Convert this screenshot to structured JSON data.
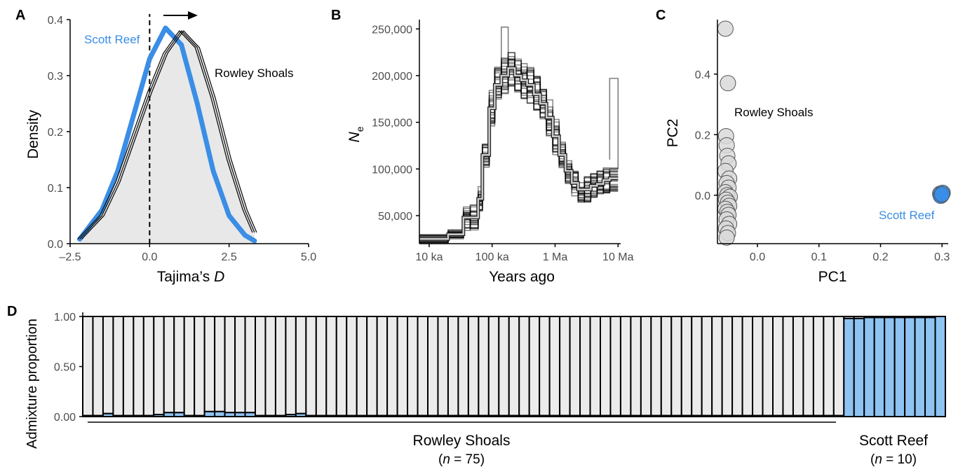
{
  "chart_data": [
    {
      "panel": "A",
      "type": "area",
      "xlabel_main": "Tajima’s ",
      "xlabel_italic": "D",
      "ylabel": "Density",
      "xlim": [
        -2.5,
        5.0
      ],
      "ylim": [
        0,
        0.4
      ],
      "xticks": [
        -2.5,
        0.0,
        2.5,
        5.0
      ],
      "xtick_labels": [
        "–2.5",
        "0.0",
        "2.5",
        "5.0"
      ],
      "yticks": [
        0.0,
        0.1,
        0.2,
        0.3,
        0.4
      ],
      "ytick_labels": [
        "0.0",
        "0.1",
        "0.2",
        "0.3",
        "0.4"
      ],
      "reference_line_x": 0,
      "series": [
        {
          "name": "Scott Reef",
          "x": [
            -2.2,
            -1.5,
            -1.0,
            -0.5,
            0.0,
            0.5,
            1.0,
            1.5,
            2.0,
            2.5,
            3.0,
            3.3
          ],
          "y": [
            0.008,
            0.06,
            0.13,
            0.23,
            0.33,
            0.385,
            0.355,
            0.25,
            0.13,
            0.05,
            0.015,
            0.005
          ]
        },
        {
          "name": "Rowley Shoals",
          "x": [
            -2.2,
            -1.5,
            -1.0,
            -0.5,
            0.0,
            0.5,
            1.0,
            1.5,
            2.0,
            2.5,
            3.0,
            3.3
          ],
          "y": [
            0.008,
            0.05,
            0.11,
            0.19,
            0.27,
            0.34,
            0.38,
            0.35,
            0.26,
            0.15,
            0.06,
            0.02
          ]
        }
      ],
      "series_colors": {
        "Scott Reef": "#3a8ee6",
        "Rowley Shoals": "#111111"
      },
      "fill_color": "#e8e8e8"
    },
    {
      "panel": "B",
      "type": "line",
      "xlabel": "Years ago",
      "ylabel_main": "N",
      "ylabel_sub": "e",
      "x_scale": "log",
      "xlim": [
        7000,
        11000000
      ],
      "ylim": [
        20000,
        260000
      ],
      "xticks": [
        10000,
        100000,
        1000000,
        10000000
      ],
      "xtick_labels": [
        "10 ka",
        "100 ka",
        "1 Ma",
        "10 Ma"
      ],
      "yticks": [
        50000,
        100000,
        150000,
        200000,
        250000
      ],
      "ytick_labels": [
        "50,000",
        "100,000",
        "150,000",
        "200,000",
        "250,000"
      ],
      "median": {
        "x": [
          7000,
          20000,
          20000,
          35000,
          35000,
          45000,
          45000,
          60000,
          60000,
          70000,
          70000,
          90000,
          90000,
          110000,
          110000,
          140000,
          140000,
          180000,
          180000,
          230000,
          230000,
          290000,
          290000,
          360000,
          360000,
          460000,
          460000,
          580000,
          580000,
          730000,
          730000,
          920000,
          920000,
          1160000,
          1160000,
          1460000,
          1460000,
          1840000,
          1840000,
          2320000,
          2320000,
          2920000,
          2920000,
          3680000,
          3680000,
          4640000,
          4640000,
          5840000,
          5840000,
          7360000,
          7360000,
          10000000
        ],
        "y": [
          25000,
          25000,
          30000,
          30000,
          48000,
          48000,
          48000,
          48000,
          68000,
          68000,
          115000,
          115000,
          165000,
          165000,
          190000,
          190000,
          200000,
          200000,
          208000,
          208000,
          200000,
          200000,
          195000,
          195000,
          190000,
          190000,
          180000,
          180000,
          170000,
          170000,
          155000,
          155000,
          135000,
          135000,
          115000,
          115000,
          98000,
          98000,
          85000,
          85000,
          78000,
          78000,
          78000,
          78000,
          82000,
          82000,
          84000,
          84000,
          88000,
          88000,
          90000,
          90000
        ]
      },
      "replicate_spread": 14000,
      "replicate_count": 24,
      "median_color": "#c8c8c8",
      "replicate_color": "#000000"
    },
    {
      "panel": "C",
      "type": "scatter",
      "xlabel": "PC1",
      "ylabel": "PC2",
      "xlim": [
        -0.065,
        0.31
      ],
      "ylim": [
        -0.16,
        0.58
      ],
      "xticks": [
        0.0,
        0.1,
        0.2,
        0.3
      ],
      "xtick_labels": [
        "0.0",
        "0.1",
        "0.2",
        "0.3"
      ],
      "yticks": [
        0.0,
        0.2,
        0.4
      ],
      "ytick_labels": [
        "0.0",
        "0.2",
        "0.4"
      ],
      "series": [
        {
          "name": "Rowley Shoals",
          "color": "#d9d9d9",
          "points": [
            [
              -0.052,
              0.55
            ],
            [
              -0.048,
              0.37
            ],
            [
              -0.051,
              0.195
            ],
            [
              -0.05,
              0.165
            ],
            [
              -0.049,
              0.13
            ],
            [
              -0.047,
              0.105
            ],
            [
              -0.052,
              0.08
            ],
            [
              -0.046,
              0.055
            ],
            [
              -0.05,
              0.04
            ],
            [
              -0.047,
              0.025
            ],
            [
              -0.052,
              0.01
            ],
            [
              -0.049,
              0.0
            ],
            [
              -0.045,
              -0.005
            ],
            [
              -0.051,
              -0.015
            ],
            [
              -0.048,
              -0.025
            ],
            [
              -0.046,
              -0.035
            ],
            [
              -0.052,
              -0.045
            ],
            [
              -0.049,
              -0.055
            ],
            [
              -0.047,
              -0.065
            ],
            [
              -0.05,
              -0.08
            ],
            [
              -0.046,
              -0.095
            ],
            [
              -0.051,
              -0.11
            ],
            [
              -0.048,
              -0.125
            ],
            [
              -0.05,
              -0.14
            ]
          ]
        },
        {
          "name": "Scott Reef",
          "color": "#3a8ee6",
          "points": [
            [
              0.297,
              0.005
            ],
            [
              0.299,
              0.0
            ],
            [
              0.301,
              0.008
            ],
            [
              0.298,
              -0.002
            ],
            [
              0.3,
              0.003
            ]
          ]
        }
      ]
    },
    {
      "panel": "D",
      "type": "bar",
      "ylabel": "Admixture proportion",
      "ylim": [
        0,
        1
      ],
      "yticks": [
        0.0,
        0.5,
        1.0
      ],
      "ytick_labels": [
        "0.00",
        "0.50",
        "1.00"
      ],
      "group_colors": {
        "Rowley Shoals": "#ebebeb",
        "Scott Reef": "#8ec3f2"
      },
      "groups": [
        {
          "name": "Rowley Shoals",
          "n_label": "75",
          "count": 75,
          "blue_fraction": [
            0.01,
            0.01,
            0.03,
            0.01,
            0.01,
            0.01,
            0.01,
            0.02,
            0.04,
            0.04,
            0.01,
            0.01,
            0.05,
            0.05,
            0.04,
            0.04,
            0.04,
            0.01,
            0.01,
            0.01,
            0.02,
            0.03,
            0.01,
            0.01,
            0.01,
            0.01,
            0.01,
            0.01,
            0.01,
            0.01,
            0.01,
            0.01,
            0.01,
            0.01,
            0.01,
            0.01,
            0.01,
            0.01,
            0.01,
            0.01,
            0.01,
            0.01,
            0.01,
            0.01,
            0.01,
            0.01,
            0.01,
            0.01,
            0.01,
            0.01,
            0.01,
            0.01,
            0.01,
            0.01,
            0.01,
            0.01,
            0.01,
            0.01,
            0.01,
            0.01,
            0.01,
            0.01,
            0.01,
            0.01,
            0.01,
            0.01,
            0.01,
            0.01,
            0.01,
            0.01,
            0.01,
            0.01,
            0.01,
            0.01,
            0.01
          ]
        },
        {
          "name": "Scott Reef",
          "n_label": "10",
          "count": 10,
          "blue_fraction": [
            0.98,
            0.98,
            0.99,
            0.99,
            0.99,
            0.99,
            0.99,
            0.99,
            0.99,
            1.0
          ]
        }
      ],
      "n_prefix": "(",
      "n_italic": "n",
      "n_equals": " = ",
      "n_suffix": ")"
    }
  ],
  "panel_labels": [
    "A",
    "B",
    "C",
    "D"
  ],
  "annotations": {
    "a_scott": "Scott Reef",
    "a_rowley": "Rowley Shoals",
    "c_rowley": "Rowley Shoals",
    "c_scott": "Scott Reef"
  }
}
